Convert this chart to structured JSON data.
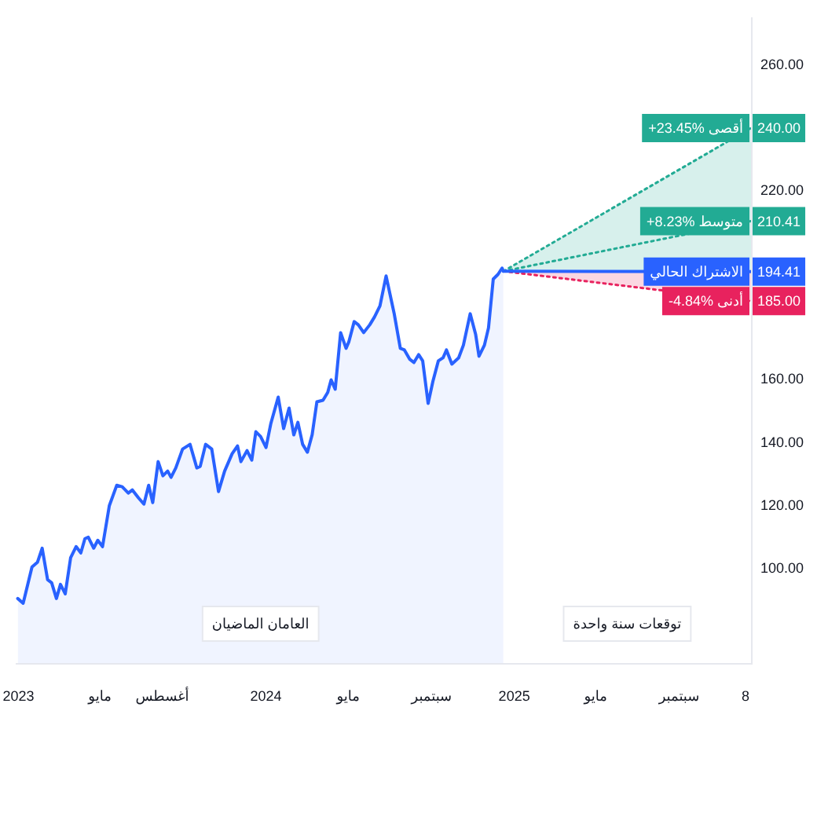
{
  "chart_data": {
    "type": "line",
    "legend": "right",
    "annotations": [
      "العامان الماضيان",
      "توقعات سنة واحدة"
    ],
    "xlim": [
      "2022-12-28",
      "2025-12-16"
    ],
    "xticks": [
      {
        "value": "2023-01-01",
        "label": "2023"
      },
      {
        "value": "2023-05-01",
        "label": "مايو"
      },
      {
        "value": "2023-08-01",
        "label": "أغسطس"
      },
      {
        "value": "2024-01-01",
        "label": "2024"
      },
      {
        "value": "2024-05-01",
        "label": "مايو"
      },
      {
        "value": "2024-09-01",
        "label": "سبتمبر"
      },
      {
        "value": "2025-01-01",
        "label": "2025"
      },
      {
        "value": "2025-05-01",
        "label": "مايو"
      },
      {
        "value": "2025-09-01",
        "label": "سبتمبر"
      },
      {
        "value": "2025-12-08",
        "label": "8"
      }
    ],
    "ylim": [
      70,
      275
    ],
    "yticks": [
      {
        "value": 100,
        "label": "100.00"
      },
      {
        "value": 120,
        "label": "120.00"
      },
      {
        "value": 140,
        "label": "140.00"
      },
      {
        "value": 160,
        "label": "160.00"
      },
      {
        "value": 220,
        "label": "220.00"
      },
      {
        "value": 260,
        "label": "260.00"
      }
    ],
    "series": [
      {
        "type": "area",
        "color": "#2962ff",
        "x": [
          "2022-12-31",
          "2023-01-08",
          "2023-01-21",
          "2023-01-29",
          "2023-02-05",
          "2023-02-13",
          "2023-02-19",
          "2023-02-26",
          "2023-03-04",
          "2023-03-11",
          "2023-03-19",
          "2023-03-27",
          "2023-04-03",
          "2023-04-09",
          "2023-04-14",
          "2023-04-22",
          "2023-04-28",
          "2023-05-05",
          "2023-05-15",
          "2023-05-26",
          "2023-06-03",
          "2023-06-12",
          "2023-06-18",
          "2023-06-27",
          "2023-07-05",
          "2023-07-12",
          "2023-07-18",
          "2023-07-26",
          "2023-08-02",
          "2023-08-09",
          "2023-08-14",
          "2023-08-21",
          "2023-08-31",
          "2023-09-11",
          "2023-09-21",
          "2023-09-26",
          "2023-10-04",
          "2023-10-13",
          "2023-10-23",
          "2023-11-01",
          "2023-11-12",
          "2023-11-20",
          "2023-11-25",
          "2023-12-04",
          "2023-12-11",
          "2023-12-17",
          "2023-12-24",
          "2024-01-01",
          "2024-01-08",
          "2024-01-19",
          "2024-01-27",
          "2024-02-04",
          "2024-02-11",
          "2024-02-17",
          "2024-02-24",
          "2024-03-02",
          "2024-03-09",
          "2024-03-16",
          "2024-03-25",
          "2024-04-01",
          "2024-04-06",
          "2024-04-12",
          "2024-04-20",
          "2024-04-28",
          "2024-05-02",
          "2024-05-10",
          "2024-05-16",
          "2024-05-24",
          "2024-06-02",
          "2024-06-09",
          "2024-06-17",
          "2024-06-26",
          "2024-07-08",
          "2024-07-17",
          "2024-07-23",
          "2024-07-31",
          "2024-08-06",
          "2024-08-13",
          "2024-08-19",
          "2024-08-27",
          "2024-09-03",
          "2024-09-11",
          "2024-09-18",
          "2024-09-23",
          "2024-10-01",
          "2024-10-11",
          "2024-10-18",
          "2024-10-28",
          "2024-11-05",
          "2024-11-10",
          "2024-11-18",
          "2024-11-24",
          "2024-12-01",
          "2024-12-08",
          "2024-12-14",
          "2024-12-16"
        ],
        "values": [
          90.5,
          89,
          100.5,
          102,
          106.5,
          96.5,
          95.5,
          90.5,
          95,
          92,
          103.5,
          107,
          105,
          109.5,
          110,
          106.5,
          109,
          107,
          120,
          126.5,
          126,
          124,
          125,
          122.5,
          120.5,
          126.5,
          121,
          134,
          129.5,
          131,
          129,
          132,
          138,
          139.5,
          132,
          132.5,
          139.5,
          138,
          124.5,
          131,
          136.5,
          139,
          134,
          137.5,
          134.5,
          143.5,
          142,
          138.5,
          146,
          154.5,
          144.5,
          151,
          142.5,
          146.5,
          139.5,
          137,
          142.5,
          153,
          153.5,
          156,
          160,
          157,
          175,
          170,
          172,
          178.5,
          177.5,
          175,
          177.5,
          180,
          183.5,
          193,
          181,
          170,
          169.5,
          166.5,
          165.5,
          168,
          166,
          152.5,
          159.5,
          166,
          167,
          169.5,
          165,
          167,
          171,
          181,
          174.5,
          167.5,
          171,
          176.5,
          192,
          193.5,
          195.5,
          194.5
        ]
      },
      {
        "name": "الاشتراك الحالي",
        "color": "#2962ff",
        "x": [
          "2024-12-16",
          "2025-12-16"
        ],
        "values": [
          194.5,
          194.41
        ],
        "value_labels": [
          null,
          "194.41"
        ]
      },
      {
        "type": "area",
        "name": "+23.45% أقصى",
        "color": "#22ab94",
        "line_style": "dotted",
        "x": [
          "2024-12-16",
          "2025-12-16"
        ],
        "values": [
          194.5,
          240
        ],
        "value_labels": [
          null,
          "240.00"
        ]
      },
      {
        "name": "+8.23% متوسط",
        "color": "#22ab94",
        "line_style": "dotted",
        "x": [
          "2024-12-16",
          "2025-12-16"
        ],
        "values": [
          194.5,
          210.41
        ],
        "value_labels": [
          null,
          "210.41"
        ]
      },
      {
        "type": "area",
        "name": "-4.84% أدنى",
        "color": "#e8225e",
        "line_style": "dotted",
        "x": [
          "2024-12-16",
          "2025-12-16"
        ],
        "values": [
          194.5,
          185
        ],
        "value_labels": [
          null,
          "185.00"
        ]
      }
    ]
  }
}
